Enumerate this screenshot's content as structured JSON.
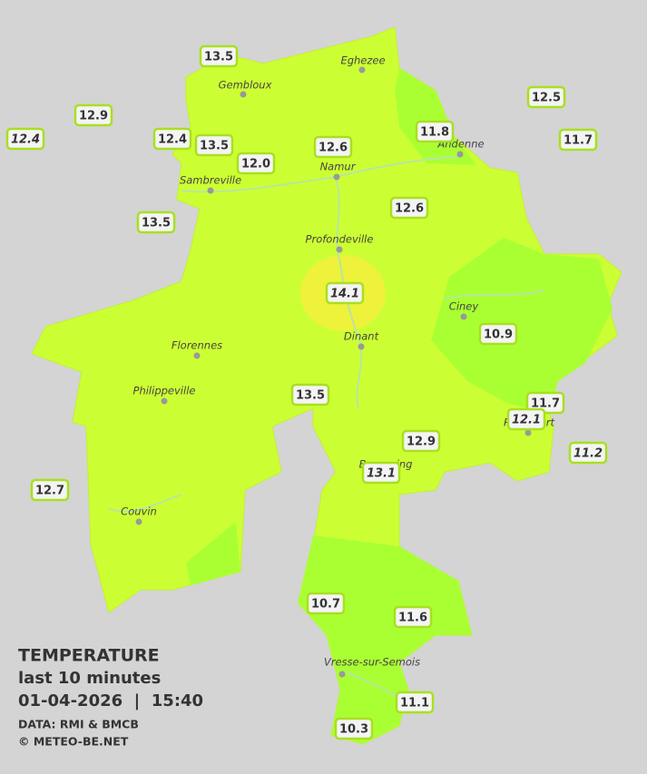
{
  "stations": [
    "13.5",
    "12.9",
    "12.4",
    "12.4",
    "13.5",
    "12.0",
    "12.6",
    "11.8",
    "12.5",
    "11.7",
    "13.5",
    "12.6",
    "14.1",
    "10.9",
    "13.5",
    "11.7",
    "12.1",
    "12.9",
    "11.2",
    "13.1",
    "12.7",
    "10.7",
    "11.6",
    "11.1",
    "10.3"
  ],
  "cities": [
    "Eghezee",
    "Gembloux",
    "Andenne",
    "Namur",
    "Sambreville",
    "Profondeville",
    "Ciney",
    "Dinant",
    "Florennes",
    "Philippeville",
    "Rochefort",
    "Beauraing",
    "Couvin",
    "Vresse-sur-Semois"
  ],
  "caption": {
    "title": "TEMPERATURE",
    "period": "last 10 minutes",
    "datetime": "01-04-2026  |  15:40",
    "source": "DATA: RMI & BMCB",
    "credit": "© METEO-BE.NET"
  }
}
